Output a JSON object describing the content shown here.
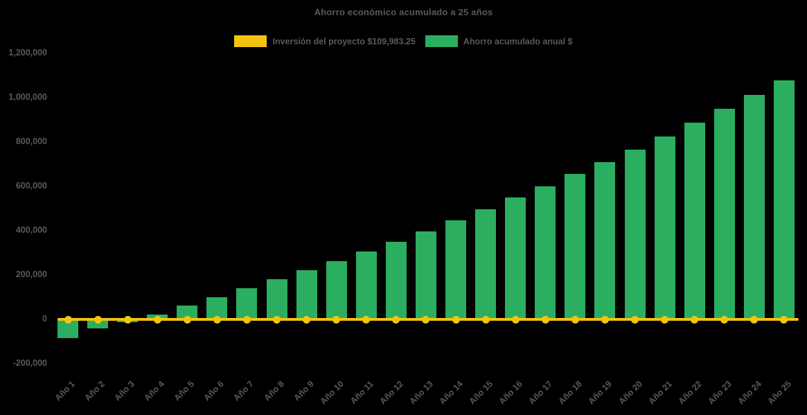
{
  "title": "Ahorro económico acumulado a 25 años",
  "colors": {
    "background": "#000000",
    "bar_green": "#2bae60",
    "line_yellow": "#f1c40f",
    "text_gray": "#595959"
  },
  "legend": {
    "items": [
      {
        "label": "Inversión del proyecto $109,983.25",
        "color": "#f1c40f"
      },
      {
        "label": "Ahorro acumulado anual $",
        "color": "#2bae60"
      }
    ]
  },
  "chart_data": {
    "type": "bar",
    "title": "Ahorro económico acumulado a 25 años",
    "categories": [
      "Año 1",
      "Año 2",
      "Año 3",
      "Año 4",
      "Año 5",
      "Año 6",
      "Año 7",
      "Año 8",
      "Año 9",
      "Año 10",
      "Año 11",
      "Año 12",
      "Año 13",
      "Año 14",
      "Año 15",
      "Año 16",
      "Año 17",
      "Año 18",
      "Año 19",
      "Año 20",
      "Año 21",
      "Año 22",
      "Año 23",
      "Año 24",
      "Año 25"
    ],
    "series": [
      {
        "name": "Ahorro acumulado anual $",
        "type": "bar",
        "color": "#2bae60",
        "values": [
          -83000,
          -42000,
          -11000,
          22000,
          64000,
          100000,
          140000,
          181000,
          222000,
          262000,
          307000,
          351000,
          398000,
          446000,
          496000,
          549000,
          601000,
          656000,
          708000,
          766000,
          824000,
          887000,
          951000,
          1014000,
          1078000
        ]
      },
      {
        "name": "Inversión del proyecto $109,983.25",
        "type": "line",
        "color": "#f1c40f",
        "investment_amount": "109,983.25",
        "values": [
          0,
          0,
          0,
          0,
          0,
          0,
          0,
          0,
          0,
          0,
          0,
          0,
          0,
          0,
          0,
          0,
          0,
          0,
          0,
          0,
          0,
          0,
          0,
          0,
          0
        ]
      }
    ],
    "ylim": [
      -200000,
      1200000
    ],
    "yticks": {
      "values": [
        1200000,
        1000000,
        800000,
        600000,
        400000,
        200000,
        0,
        -200000
      ],
      "labels": [
        "1,200,000",
        "1,000,000",
        "800,000",
        "600,000",
        "400,000",
        "200,000",
        "0",
        "-200,000"
      ]
    },
    "grid": false,
    "legend_position": "top",
    "background": "black"
  }
}
